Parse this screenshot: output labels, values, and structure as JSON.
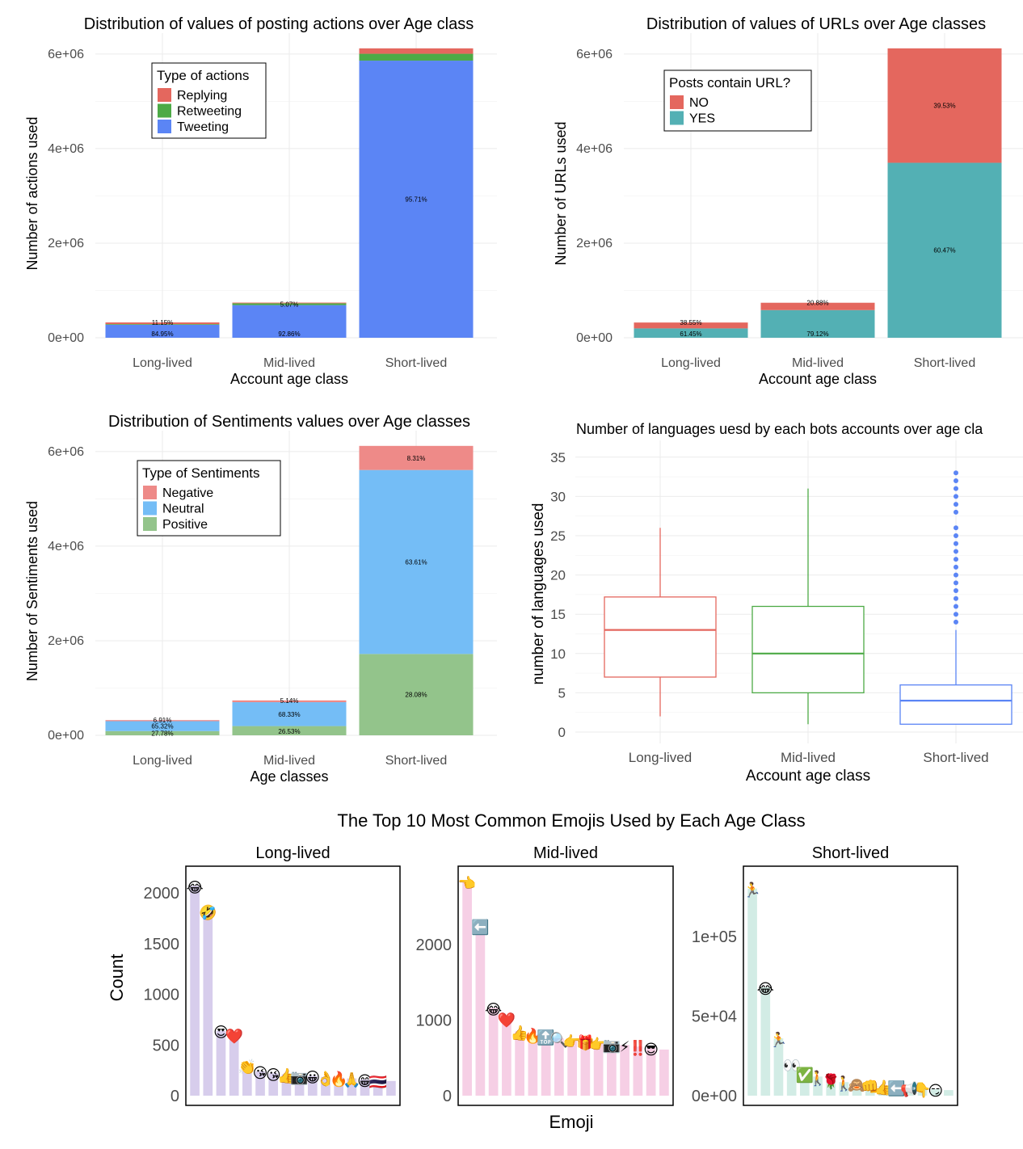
{
  "chart_data": [
    {
      "id": "actions",
      "type": "bar",
      "stacked": true,
      "title": "Distribution of values of posting actions over Age class",
      "xlabel": "Account age class",
      "ylabel": "Number of actions used",
      "categories": [
        "Long-lived",
        "Mid-lived",
        "Short-lived"
      ],
      "ylim": [
        0,
        6100000
      ],
      "yticks": [
        0,
        2000000,
        4000000,
        6000000
      ],
      "ytick_labels": [
        "0e+00",
        "2e+06",
        "4e+06",
        "6e+06"
      ],
      "legend": {
        "title": "Type of actions",
        "position": "top-left"
      },
      "series": [
        {
          "name": "Tweeting",
          "color": "#5b85f5",
          "values": [
            275000,
            690000,
            5860000
          ],
          "labels": [
            "84.95%",
            "92.86%",
            "95.71%"
          ]
        },
        {
          "name": "Retweeting",
          "color": "#4daa46",
          "values": [
            14000,
            38000,
            145000
          ],
          "labels": [
            "",
            "5.07%",
            ""
          ]
        },
        {
          "name": "Replying",
          "color": "#e4675e",
          "values": [
            35000,
            15000,
            115000
          ],
          "labels": [
            "11.15%",
            "",
            ""
          ]
        }
      ]
    },
    {
      "id": "urls",
      "type": "bar",
      "stacked": true,
      "title": "Distribution of values of URLs over Age classes",
      "xlabel": "Account age class",
      "ylabel": "Number of URLs used",
      "categories": [
        "Long-lived",
        "Mid-lived",
        "Short-lived"
      ],
      "ylim": [
        0,
        6100000
      ],
      "yticks": [
        0,
        2000000,
        4000000,
        6000000
      ],
      "ytick_labels": [
        "0e+00",
        "2e+06",
        "4e+06",
        "6e+06"
      ],
      "legend": {
        "title": "Posts contain URL?",
        "position": "top-left"
      },
      "series": [
        {
          "name": "YES",
          "color": "#53b0b4",
          "values": [
            198000,
            585000,
            3700000
          ],
          "labels": [
            "61.45%",
            "79.12%",
            "60.47%"
          ]
        },
        {
          "name": "NO",
          "color": "#e4675e",
          "values": [
            124000,
            155000,
            2420000
          ],
          "labels": [
            "38.55%",
            "20.88%",
            "39.53%"
          ]
        }
      ]
    },
    {
      "id": "sentiments",
      "type": "bar",
      "stacked": true,
      "title": "Distribution of Sentiments values over Age classes",
      "xlabel": "Age classes",
      "ylabel": "Number of Sentiments used",
      "categories": [
        "Long-lived",
        "Mid-lived",
        "Short-lived"
      ],
      "ylim": [
        0,
        6100000
      ],
      "yticks": [
        0,
        2000000,
        4000000,
        6000000
      ],
      "ytick_labels": [
        "0e+00",
        "2e+06",
        "4e+06",
        "6e+06"
      ],
      "legend": {
        "title": "Type of Sentiments",
        "position": "top-left"
      },
      "series": [
        {
          "name": "Positive",
          "color": "#93c48b",
          "values": [
            89000,
            195000,
            1720000
          ],
          "labels": [
            "27.78%",
            "26.53%",
            "28.08%"
          ]
        },
        {
          "name": "Neutral",
          "color": "#74bdf6",
          "values": [
            210000,
            505000,
            3890000
          ],
          "labels": [
            "65.32%",
            "68.33%",
            "63.61%"
          ]
        },
        {
          "name": "Negative",
          "color": "#ee8a88",
          "values": [
            22000,
            38000,
            510000
          ],
          "labels": [
            "6.91%",
            "5.14%",
            "8.31%"
          ]
        }
      ]
    },
    {
      "id": "languages",
      "type": "box",
      "title": "Number of languages uesd by each bots accounts over age cla",
      "xlabel": "Account age class",
      "ylabel": "number of languages used",
      "categories": [
        "Long-lived",
        "Mid-lived",
        "Short-lived"
      ],
      "ylim": [
        0,
        35
      ],
      "yticks": [
        0,
        5,
        10,
        15,
        20,
        25,
        30,
        35
      ],
      "boxes": [
        {
          "name": "Long-lived",
          "color": "#e4675e",
          "min": 2,
          "q1": 7,
          "median": 13,
          "q3": 17.2,
          "max": 26,
          "outliers": []
        },
        {
          "name": "Mid-lived",
          "color": "#4daa46",
          "min": 1,
          "q1": 5,
          "median": 10,
          "q3": 16,
          "max": 31,
          "outliers": []
        },
        {
          "name": "Short-lived",
          "color": "#5b85f5",
          "min": 1,
          "q1": 1,
          "median": 4,
          "q3": 6,
          "max": 13,
          "outliers": [
            14,
            15,
            16,
            17,
            18,
            19,
            20,
            21,
            22,
            23,
            24,
            25,
            26,
            28,
            29,
            30,
            31,
            32,
            33
          ]
        }
      ]
    },
    {
      "id": "emojis",
      "type": "bar",
      "title": "The Top 10 Most Common Emojis Used by Each Age Class",
      "xlabel": "Emoji",
      "ylabel": "Count",
      "panels": [
        {
          "name": "Long-lived",
          "color": "#d7cdec",
          "ylim": [
            0,
            2200
          ],
          "yticks": [
            0,
            500,
            1000,
            1500,
            2000
          ],
          "ytick_labels": [
            "0",
            "500",
            "1000",
            "1500",
            "2000"
          ],
          "values": [
            2070,
            1820,
            640,
            600,
            300,
            240,
            220,
            210,
            200,
            195,
            185,
            180,
            170,
            160,
            150,
            145
          ],
          "emojis": [
            "😂",
            "🤣",
            "😍",
            "❤️",
            "👏",
            "😘",
            "😘",
            "👍",
            "📷",
            "😀",
            "👌",
            "🔥",
            "🙏",
            "😁",
            "🇹🇭",
            ""
          ]
        },
        {
          "name": "Mid-lived",
          "color": "#f6cfe5",
          "ylim": [
            0,
            2950
          ],
          "yticks": [
            0,
            1000,
            2000
          ],
          "ytick_labels": [
            "0",
            "1000",
            "2000"
          ],
          "values": [
            2830,
            2250,
            1160,
            1020,
            850,
            810,
            790,
            760,
            740,
            720,
            700,
            690,
            670,
            650,
            630,
            610
          ],
          "emojis": [
            "👈",
            "⬅️",
            "😂",
            "❤️",
            "👍",
            "🔥",
            "🔝",
            "🔍",
            "👉",
            "🎁",
            "👉",
            "📷",
            "⚡",
            "‼️",
            "😎",
            ""
          ]
        },
        {
          "name": "Short-lived",
          "color": "#d2ece5",
          "ylim": [
            0,
            140000
          ],
          "yticks": [
            0,
            50000,
            100000
          ],
          "ytick_labels": [
            "0e+00",
            "5e+04",
            "1e+05"
          ],
          "values": [
            130000,
            68000,
            36000,
            20000,
            14000,
            12000,
            10000,
            8500,
            7500,
            6500,
            6000,
            5500,
            5000,
            4500,
            4000,
            3500
          ],
          "emojis": [
            "🏃",
            "😂",
            "🏃",
            "👀",
            "✅",
            "🚶",
            "🌹",
            "🚶",
            "🙈",
            "👊",
            "👍",
            "⬅️",
            "📢",
            "👇",
            "😏",
            ""
          ]
        }
      ]
    }
  ]
}
